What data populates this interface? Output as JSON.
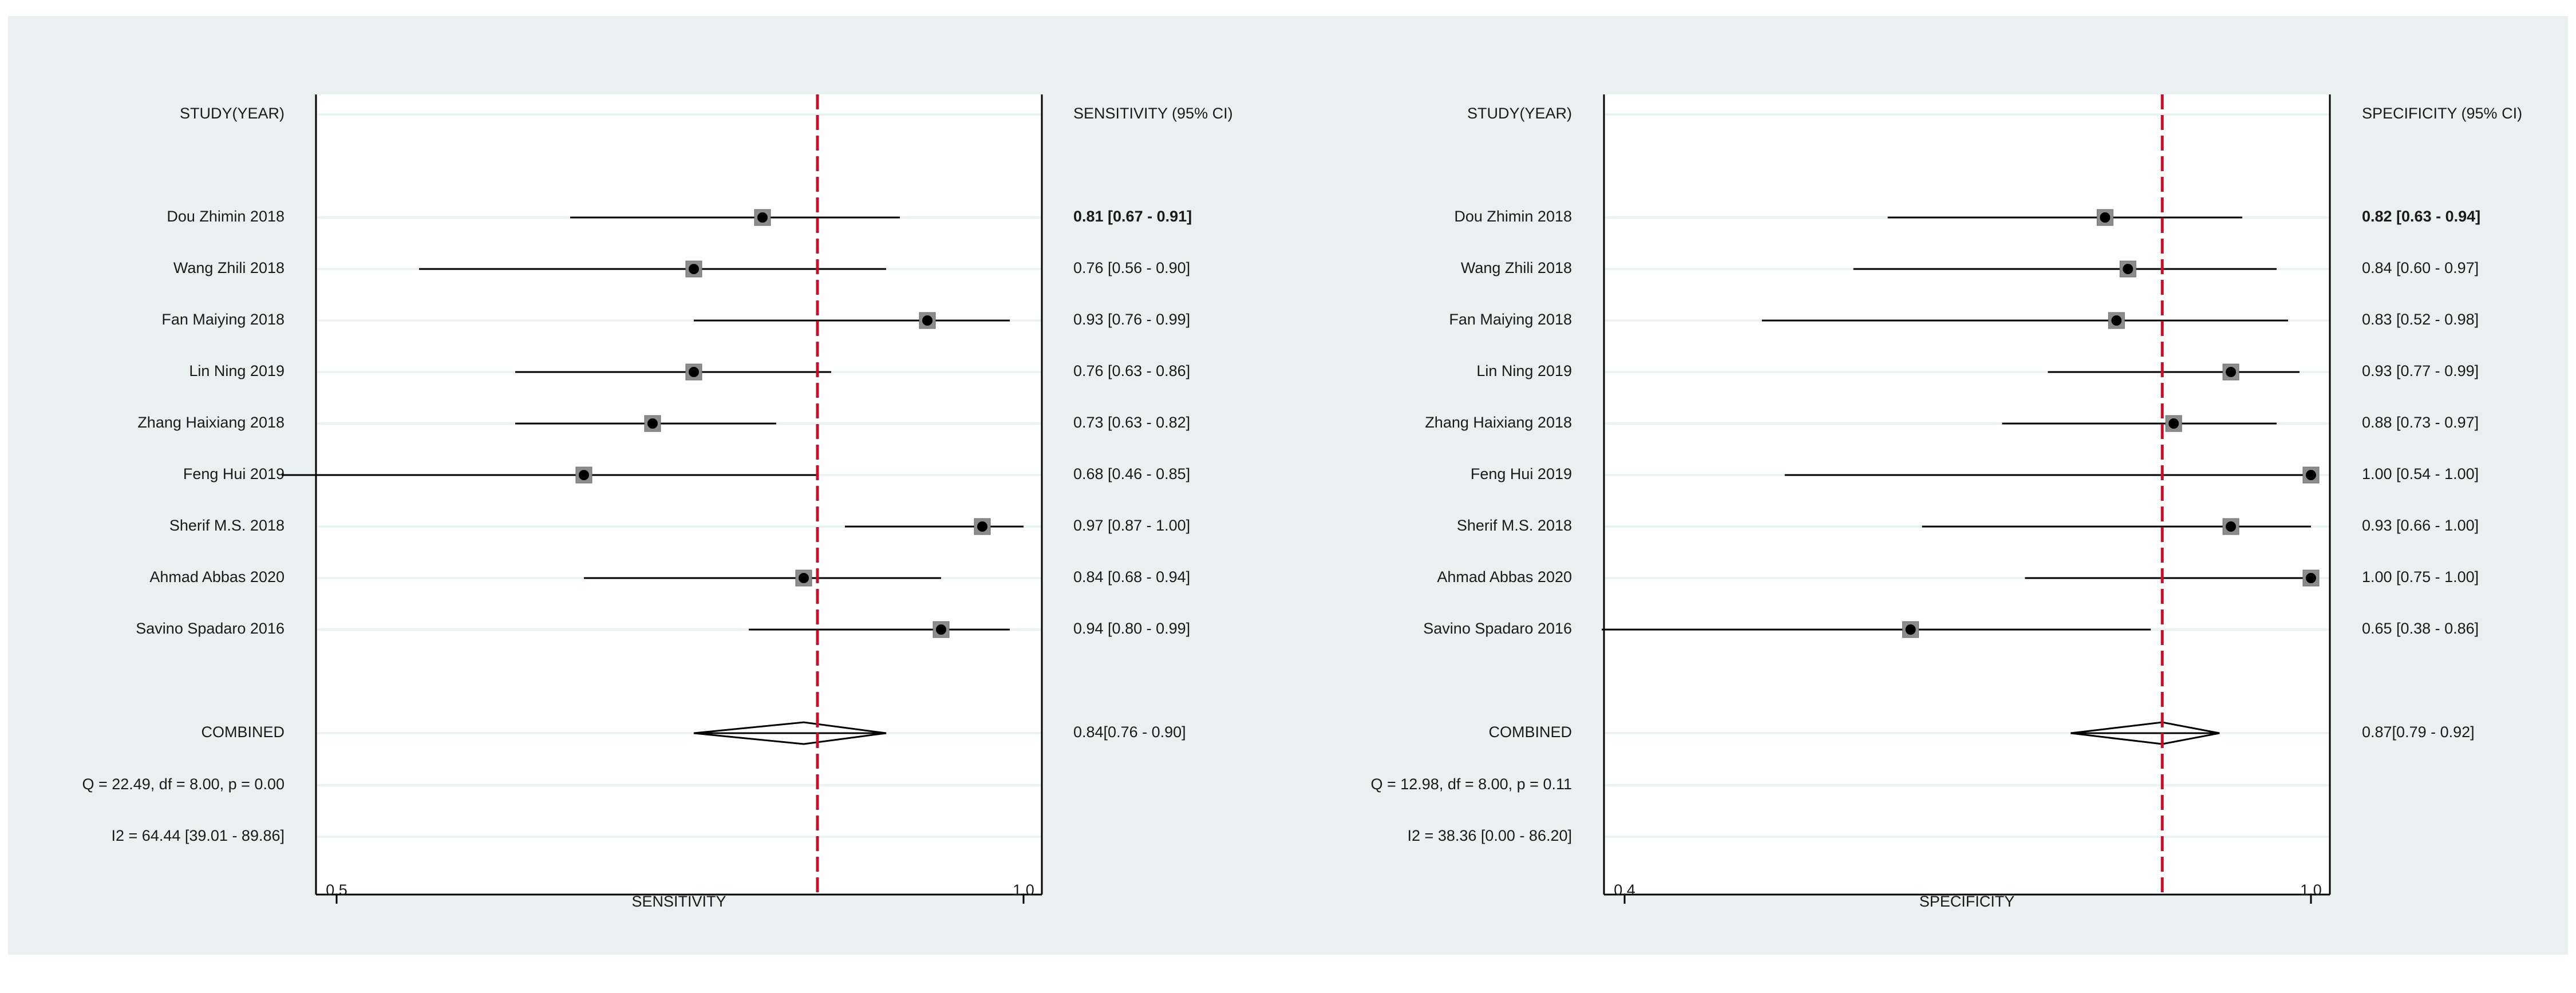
{
  "colors": {
    "outer_bg": "#e9f0f0",
    "plot_bg": "#ffffff",
    "row_band": "#eaf2f2",
    "reference_line": "#c0102a",
    "marker_box": "#8c8c8c",
    "marker_dot": "#000000",
    "ci_line": "#000000",
    "text": "#1a1a1a"
  },
  "chart_data": [
    {
      "type": "forest",
      "study_header": "STUDY(YEAR)",
      "ci_header": "SENSITIVITY (95% CI)",
      "xlabel": "SENSITIVITY",
      "xlim": [
        0.5,
        1.0
      ],
      "ticks": [
        "0.5",
        "1.0"
      ],
      "reference_line": 0.85,
      "studies": [
        {
          "name": "Dou Zhimin 2018",
          "estimate": 0.81,
          "lower": 0.67,
          "upper": 0.91,
          "label": "0.81 [0.67 - 0.91]"
        },
        {
          "name": "Wang Zhili 2018",
          "estimate": 0.76,
          "lower": 0.56,
          "upper": 0.9,
          "label": "0.76 [0.56 - 0.90]"
        },
        {
          "name": "Fan Maiying 2018",
          "estimate": 0.93,
          "lower": 0.76,
          "upper": 0.99,
          "label": "0.93 [0.76 - 0.99]"
        },
        {
          "name": "Lin Ning 2019",
          "estimate": 0.76,
          "lower": 0.63,
          "upper": 0.86,
          "label": "0.76 [0.63 - 0.86]"
        },
        {
          "name": "Zhang Haixiang 2018",
          "estimate": 0.73,
          "lower": 0.63,
          "upper": 0.82,
          "label": "0.73 [0.63 - 0.82]"
        },
        {
          "name": "Feng Hui 2019",
          "estimate": 0.68,
          "lower": 0.46,
          "upper": 0.85,
          "label": "0.68 [0.46 - 0.85]"
        },
        {
          "name": "Sherif M.S. 2018",
          "estimate": 0.97,
          "lower": 0.87,
          "upper": 1.0,
          "label": "0.97 [0.87 - 1.00]"
        },
        {
          "name": "Ahmad Abbas 2020",
          "estimate": 0.84,
          "lower": 0.68,
          "upper": 0.94,
          "label": "0.84 [0.68 - 0.94]"
        },
        {
          "name": "Savino Spadaro 2016",
          "estimate": 0.94,
          "lower": 0.8,
          "upper": 0.99,
          "label": "0.94 [0.80 - 0.99]"
        }
      ],
      "combined": {
        "name": "COMBINED",
        "estimate": 0.84,
        "lower": 0.76,
        "upper": 0.9,
        "label": "0.84[0.76 - 0.90]"
      },
      "heterogeneity_q": "Q = 22.49, df = 8.00, p =  0.00",
      "heterogeneity_i2": "I2 = 64.44 [39.01 - 89.86]"
    },
    {
      "type": "forest",
      "study_header": "STUDY(YEAR)",
      "ci_header": "SPECIFICITY (95% CI)",
      "xlabel": "SPECIFICITY",
      "xlim": [
        0.4,
        1.0
      ],
      "ticks": [
        "0.4",
        "1.0"
      ],
      "reference_line": 0.87,
      "studies": [
        {
          "name": "Dou Zhimin 2018",
          "estimate": 0.82,
          "lower": 0.63,
          "upper": 0.94,
          "label": "0.82 [0.63 - 0.94]"
        },
        {
          "name": "Wang Zhili 2018",
          "estimate": 0.84,
          "lower": 0.6,
          "upper": 0.97,
          "label": "0.84 [0.60 - 0.97]"
        },
        {
          "name": "Fan Maiying 2018",
          "estimate": 0.83,
          "lower": 0.52,
          "upper": 0.98,
          "label": "0.83 [0.52 - 0.98]"
        },
        {
          "name": "Lin Ning 2019",
          "estimate": 0.93,
          "lower": 0.77,
          "upper": 0.99,
          "label": "0.93 [0.77 - 0.99]"
        },
        {
          "name": "Zhang Haixiang 2018",
          "estimate": 0.88,
          "lower": 0.73,
          "upper": 0.97,
          "label": "0.88 [0.73 - 0.97]"
        },
        {
          "name": "Feng Hui 2019",
          "estimate": 1.0,
          "lower": 0.54,
          "upper": 1.0,
          "label": "1.00 [0.54 - 1.00]"
        },
        {
          "name": "Sherif M.S. 2018",
          "estimate": 0.93,
          "lower": 0.66,
          "upper": 1.0,
          "label": "0.93 [0.66 - 1.00]"
        },
        {
          "name": "Ahmad Abbas 2020",
          "estimate": 1.0,
          "lower": 0.75,
          "upper": 1.0,
          "label": "1.00 [0.75 - 1.00]"
        },
        {
          "name": "Savino Spadaro 2016",
          "estimate": 0.65,
          "lower": 0.38,
          "upper": 0.86,
          "label": "0.65 [0.38 - 0.86]"
        }
      ],
      "combined": {
        "name": "COMBINED",
        "estimate": 0.87,
        "lower": 0.79,
        "upper": 0.92,
        "label": "0.87[0.79 - 0.92]"
      },
      "heterogeneity_q": "Q = 12.98, df = 8.00, p =  0.11",
      "heterogeneity_i2": "I2 = 38.36 [0.00 - 86.20]"
    }
  ]
}
